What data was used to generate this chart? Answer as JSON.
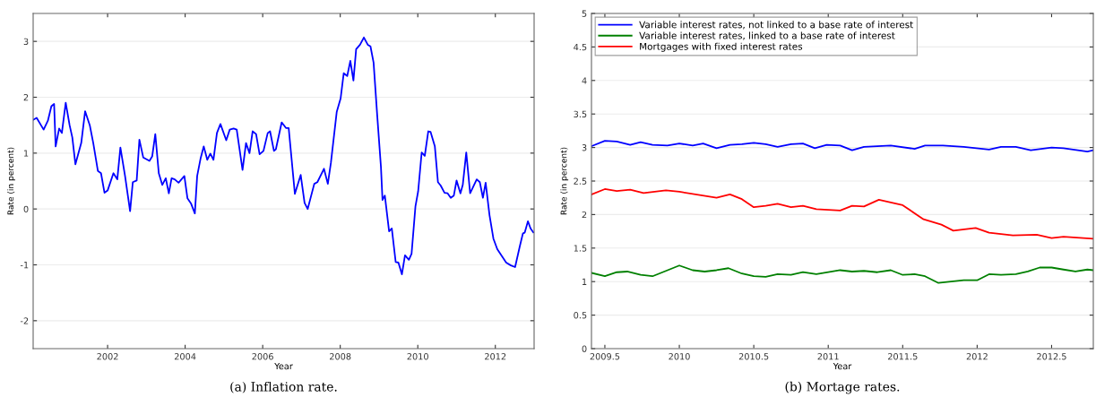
{
  "chart_data": [
    {
      "type": "line",
      "xlabel": "Year",
      "ylabel": "Rate (in percent)",
      "annotations": [
        "(a) Inflation rate."
      ],
      "xlim": [
        2000.08,
        2013.0
      ],
      "xticks": [
        2002,
        2004,
        2006,
        2008,
        2010,
        2012
      ],
      "ylim": [
        -2.5,
        3.5
      ],
      "yticks": [
        -2,
        -1,
        0,
        1,
        2,
        3
      ],
      "grid": "y",
      "legend": false,
      "series": [
        {
          "color": "#0000ff",
          "x": [
            2000.09,
            2000.17,
            2000.35,
            2000.46,
            2000.55,
            2000.62,
            2000.66,
            2000.75,
            2000.82,
            2000.92,
            2001.02,
            2001.09,
            2001.17,
            2001.32,
            2001.42,
            2001.54,
            2001.63,
            2001.75,
            2001.83,
            2001.92,
            2002.0,
            2002.15,
            2002.25,
            2002.33,
            2002.45,
            2002.58,
            2002.65,
            2002.75,
            2002.82,
            2002.92,
            2003.08,
            2003.15,
            2003.23,
            2003.32,
            2003.41,
            2003.5,
            2003.58,
            2003.65,
            2003.73,
            2003.83,
            2003.98,
            2004.06,
            2004.15,
            2004.25,
            2004.31,
            2004.4,
            2004.48,
            2004.57,
            2004.65,
            2004.73,
            2004.82,
            2004.91,
            2005.06,
            2005.15,
            2005.25,
            2005.33,
            2005.48,
            2005.57,
            2005.66,
            2005.74,
            2005.83,
            2005.92,
            2006.02,
            2006.13,
            2006.19,
            2006.29,
            2006.34,
            2006.49,
            2006.6,
            2006.67,
            2006.83,
            2006.98,
            2007.08,
            2007.16,
            2007.33,
            2007.41,
            2007.58,
            2007.68,
            2007.76,
            2007.91,
            2008.01,
            2008.09,
            2008.18,
            2008.26,
            2008.34,
            2008.41,
            2008.51,
            2008.61,
            2008.71,
            2008.78,
            2008.86,
            2008.95,
            2009.05,
            2009.09,
            2009.15,
            2009.26,
            2009.33,
            2009.43,
            2009.5,
            2009.59,
            2009.67,
            2009.77,
            2009.84,
            2009.94,
            2010.01,
            2010.1,
            2010.18,
            2010.27,
            2010.33,
            2010.44,
            2010.52,
            2010.59,
            2010.69,
            2010.77,
            2010.85,
            2010.93,
            2011.0,
            2011.1,
            2011.16,
            2011.25,
            2011.35,
            2011.52,
            2011.6,
            2011.68,
            2011.75,
            2011.85,
            2011.95,
            2012.05,
            2012.28,
            2012.4,
            2012.51,
            2012.63,
            2012.71,
            2012.76,
            2012.84,
            2012.91,
            2012.98
          ],
          "values": [
            1.6,
            1.63,
            1.42,
            1.58,
            1.84,
            1.88,
            1.12,
            1.44,
            1.36,
            1.9,
            1.5,
            1.28,
            0.8,
            1.18,
            1.75,
            1.5,
            1.18,
            0.68,
            0.64,
            0.29,
            0.33,
            0.64,
            0.53,
            1.1,
            0.59,
            -0.04,
            0.48,
            0.51,
            1.24,
            0.92,
            0.86,
            0.94,
            1.34,
            0.64,
            0.43,
            0.55,
            0.28,
            0.55,
            0.53,
            0.47,
            0.59,
            0.19,
            0.1,
            -0.08,
            0.59,
            0.91,
            1.12,
            0.88,
            0.99,
            0.88,
            1.36,
            1.52,
            1.23,
            1.42,
            1.44,
            1.42,
            0.7,
            1.18,
            1.0,
            1.39,
            1.34,
            0.98,
            1.04,
            1.36,
            1.39,
            1.04,
            1.07,
            1.55,
            1.45,
            1.45,
            0.27,
            0.61,
            0.11,
            0.0,
            0.45,
            0.48,
            0.72,
            0.45,
            0.83,
            1.74,
            1.98,
            2.43,
            2.38,
            2.65,
            2.3,
            2.86,
            2.94,
            3.07,
            2.94,
            2.91,
            2.62,
            1.71,
            0.75,
            0.16,
            0.24,
            -0.4,
            -0.35,
            -0.95,
            -0.96,
            -1.17,
            -0.83,
            -0.91,
            -0.8,
            0.05,
            0.32,
            1.01,
            0.95,
            1.39,
            1.38,
            1.12,
            0.48,
            0.42,
            0.29,
            0.28,
            0.2,
            0.24,
            0.51,
            0.28,
            0.43,
            1.01,
            0.28,
            0.53,
            0.48,
            0.2,
            0.47,
            -0.11,
            -0.53,
            -0.72,
            -0.96,
            -1.01,
            -1.04,
            -0.67,
            -0.44,
            -0.42,
            -0.22,
            -0.35,
            -0.42
          ]
        }
      ]
    },
    {
      "type": "line",
      "xlabel": "Year",
      "ylabel": "Rate (in percent)",
      "annotations": [
        "(b) Mortage rates."
      ],
      "xlim": [
        2009.41,
        2012.78
      ],
      "xticks": [
        2009.5,
        2010,
        2010.5,
        2011,
        2011.5,
        2012,
        2012.5
      ],
      "ylim": [
        0,
        5
      ],
      "yticks": [
        0,
        0.5,
        1,
        1.5,
        2,
        2.5,
        3,
        3.5,
        4,
        4.5,
        5
      ],
      "grid": "y",
      "legend": "top left",
      "series": [
        {
          "name": "Variable interest rates, not linked to a base rate of interest",
          "color": "#0000ff",
          "x": [
            2009.41,
            2009.5,
            2009.58,
            2009.67,
            2009.74,
            2009.82,
            2009.92,
            2010.0,
            2010.09,
            2010.16,
            2010.25,
            2010.34,
            2010.42,
            2010.5,
            2010.58,
            2010.66,
            2010.75,
            2010.83,
            2010.91,
            2010.99,
            2011.08,
            2011.16,
            2011.24,
            2011.42,
            2011.58,
            2011.65,
            2011.77,
            2011.91,
            2012.08,
            2012.16,
            2012.26,
            2012.36,
            2012.5,
            2012.58,
            2012.74,
            2012.78
          ],
          "values": [
            3.02,
            3.1,
            3.09,
            3.04,
            3.08,
            3.04,
            3.03,
            3.06,
            3.03,
            3.06,
            2.99,
            3.04,
            3.05,
            3.07,
            3.05,
            3.01,
            3.05,
            3.06,
            2.99,
            3.04,
            3.03,
            2.96,
            3.01,
            3.03,
            2.98,
            3.03,
            3.03,
            3.01,
            2.97,
            3.01,
            3.01,
            2.96,
            3.0,
            2.99,
            2.94,
            2.96
          ]
        },
        {
          "name": "Variable interest rates, linked to a base rate of interest",
          "color": "#008000",
          "x": [
            2009.41,
            2009.5,
            2009.58,
            2009.65,
            2009.74,
            2009.82,
            2010.0,
            2010.09,
            2010.17,
            2010.25,
            2010.33,
            2010.42,
            2010.5,
            2010.58,
            2010.66,
            2010.75,
            2010.83,
            2010.92,
            2011.08,
            2011.16,
            2011.24,
            2011.33,
            2011.42,
            2011.5,
            2011.58,
            2011.65,
            2011.74,
            2011.91,
            2012.0,
            2012.08,
            2012.16,
            2012.26,
            2012.34,
            2012.42,
            2012.5,
            2012.58,
            2012.66,
            2012.74,
            2012.78
          ],
          "values": [
            1.13,
            1.08,
            1.14,
            1.15,
            1.1,
            1.08,
            1.24,
            1.17,
            1.15,
            1.17,
            1.2,
            1.12,
            1.08,
            1.07,
            1.11,
            1.1,
            1.14,
            1.11,
            1.17,
            1.15,
            1.16,
            1.14,
            1.17,
            1.1,
            1.11,
            1.08,
            0.98,
            1.02,
            1.02,
            1.11,
            1.1,
            1.11,
            1.15,
            1.21,
            1.21,
            1.18,
            1.15,
            1.18,
            1.17
          ]
        },
        {
          "name": "Mortgages with fixed interest rates",
          "color": "#ff0000",
          "x": [
            2009.41,
            2009.5,
            2009.58,
            2009.67,
            2009.76,
            2009.91,
            2010.0,
            2010.25,
            2010.34,
            2010.42,
            2010.5,
            2010.58,
            2010.66,
            2010.75,
            2010.83,
            2010.92,
            2011.08,
            2011.16,
            2011.24,
            2011.34,
            2011.5,
            2011.64,
            2011.76,
            2011.84,
            2011.99,
            2012.08,
            2012.24,
            2012.4,
            2012.5,
            2012.58,
            2012.78
          ],
          "values": [
            2.3,
            2.38,
            2.35,
            2.37,
            2.32,
            2.36,
            2.34,
            2.25,
            2.3,
            2.23,
            2.11,
            2.13,
            2.16,
            2.11,
            2.13,
            2.08,
            2.06,
            2.13,
            2.12,
            2.22,
            2.14,
            1.93,
            1.85,
            1.76,
            1.8,
            1.73,
            1.69,
            1.7,
            1.65,
            1.67,
            1.64
          ]
        }
      ]
    }
  ]
}
